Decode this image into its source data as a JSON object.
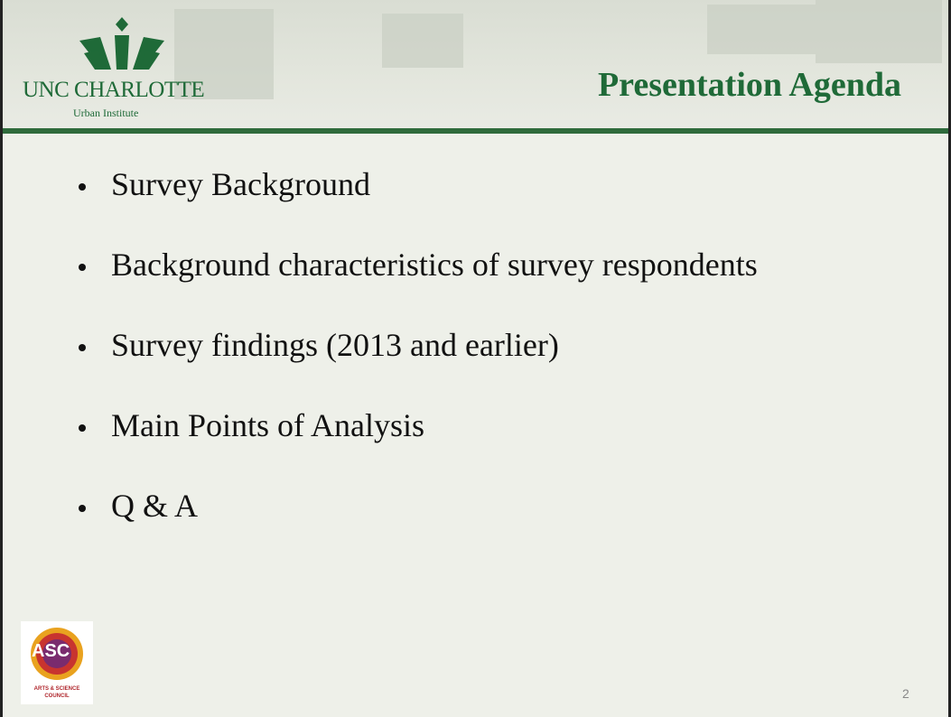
{
  "header": {
    "logo_name": "UNC CHARLOTTE",
    "logo_subtitle": "Urban Institute",
    "title": "Presentation Agenda"
  },
  "bullets": [
    "Survey Background",
    "Background characteristics of survey respondents",
    "Survey findings (2013 and earlier)",
    "Main Points of Analysis",
    "Q & A"
  ],
  "footer": {
    "logo_text": "ASC",
    "logo_caption_1": "ARTS & SCIENCE",
    "logo_caption_2": "COUNCIL",
    "page_number": "2"
  }
}
